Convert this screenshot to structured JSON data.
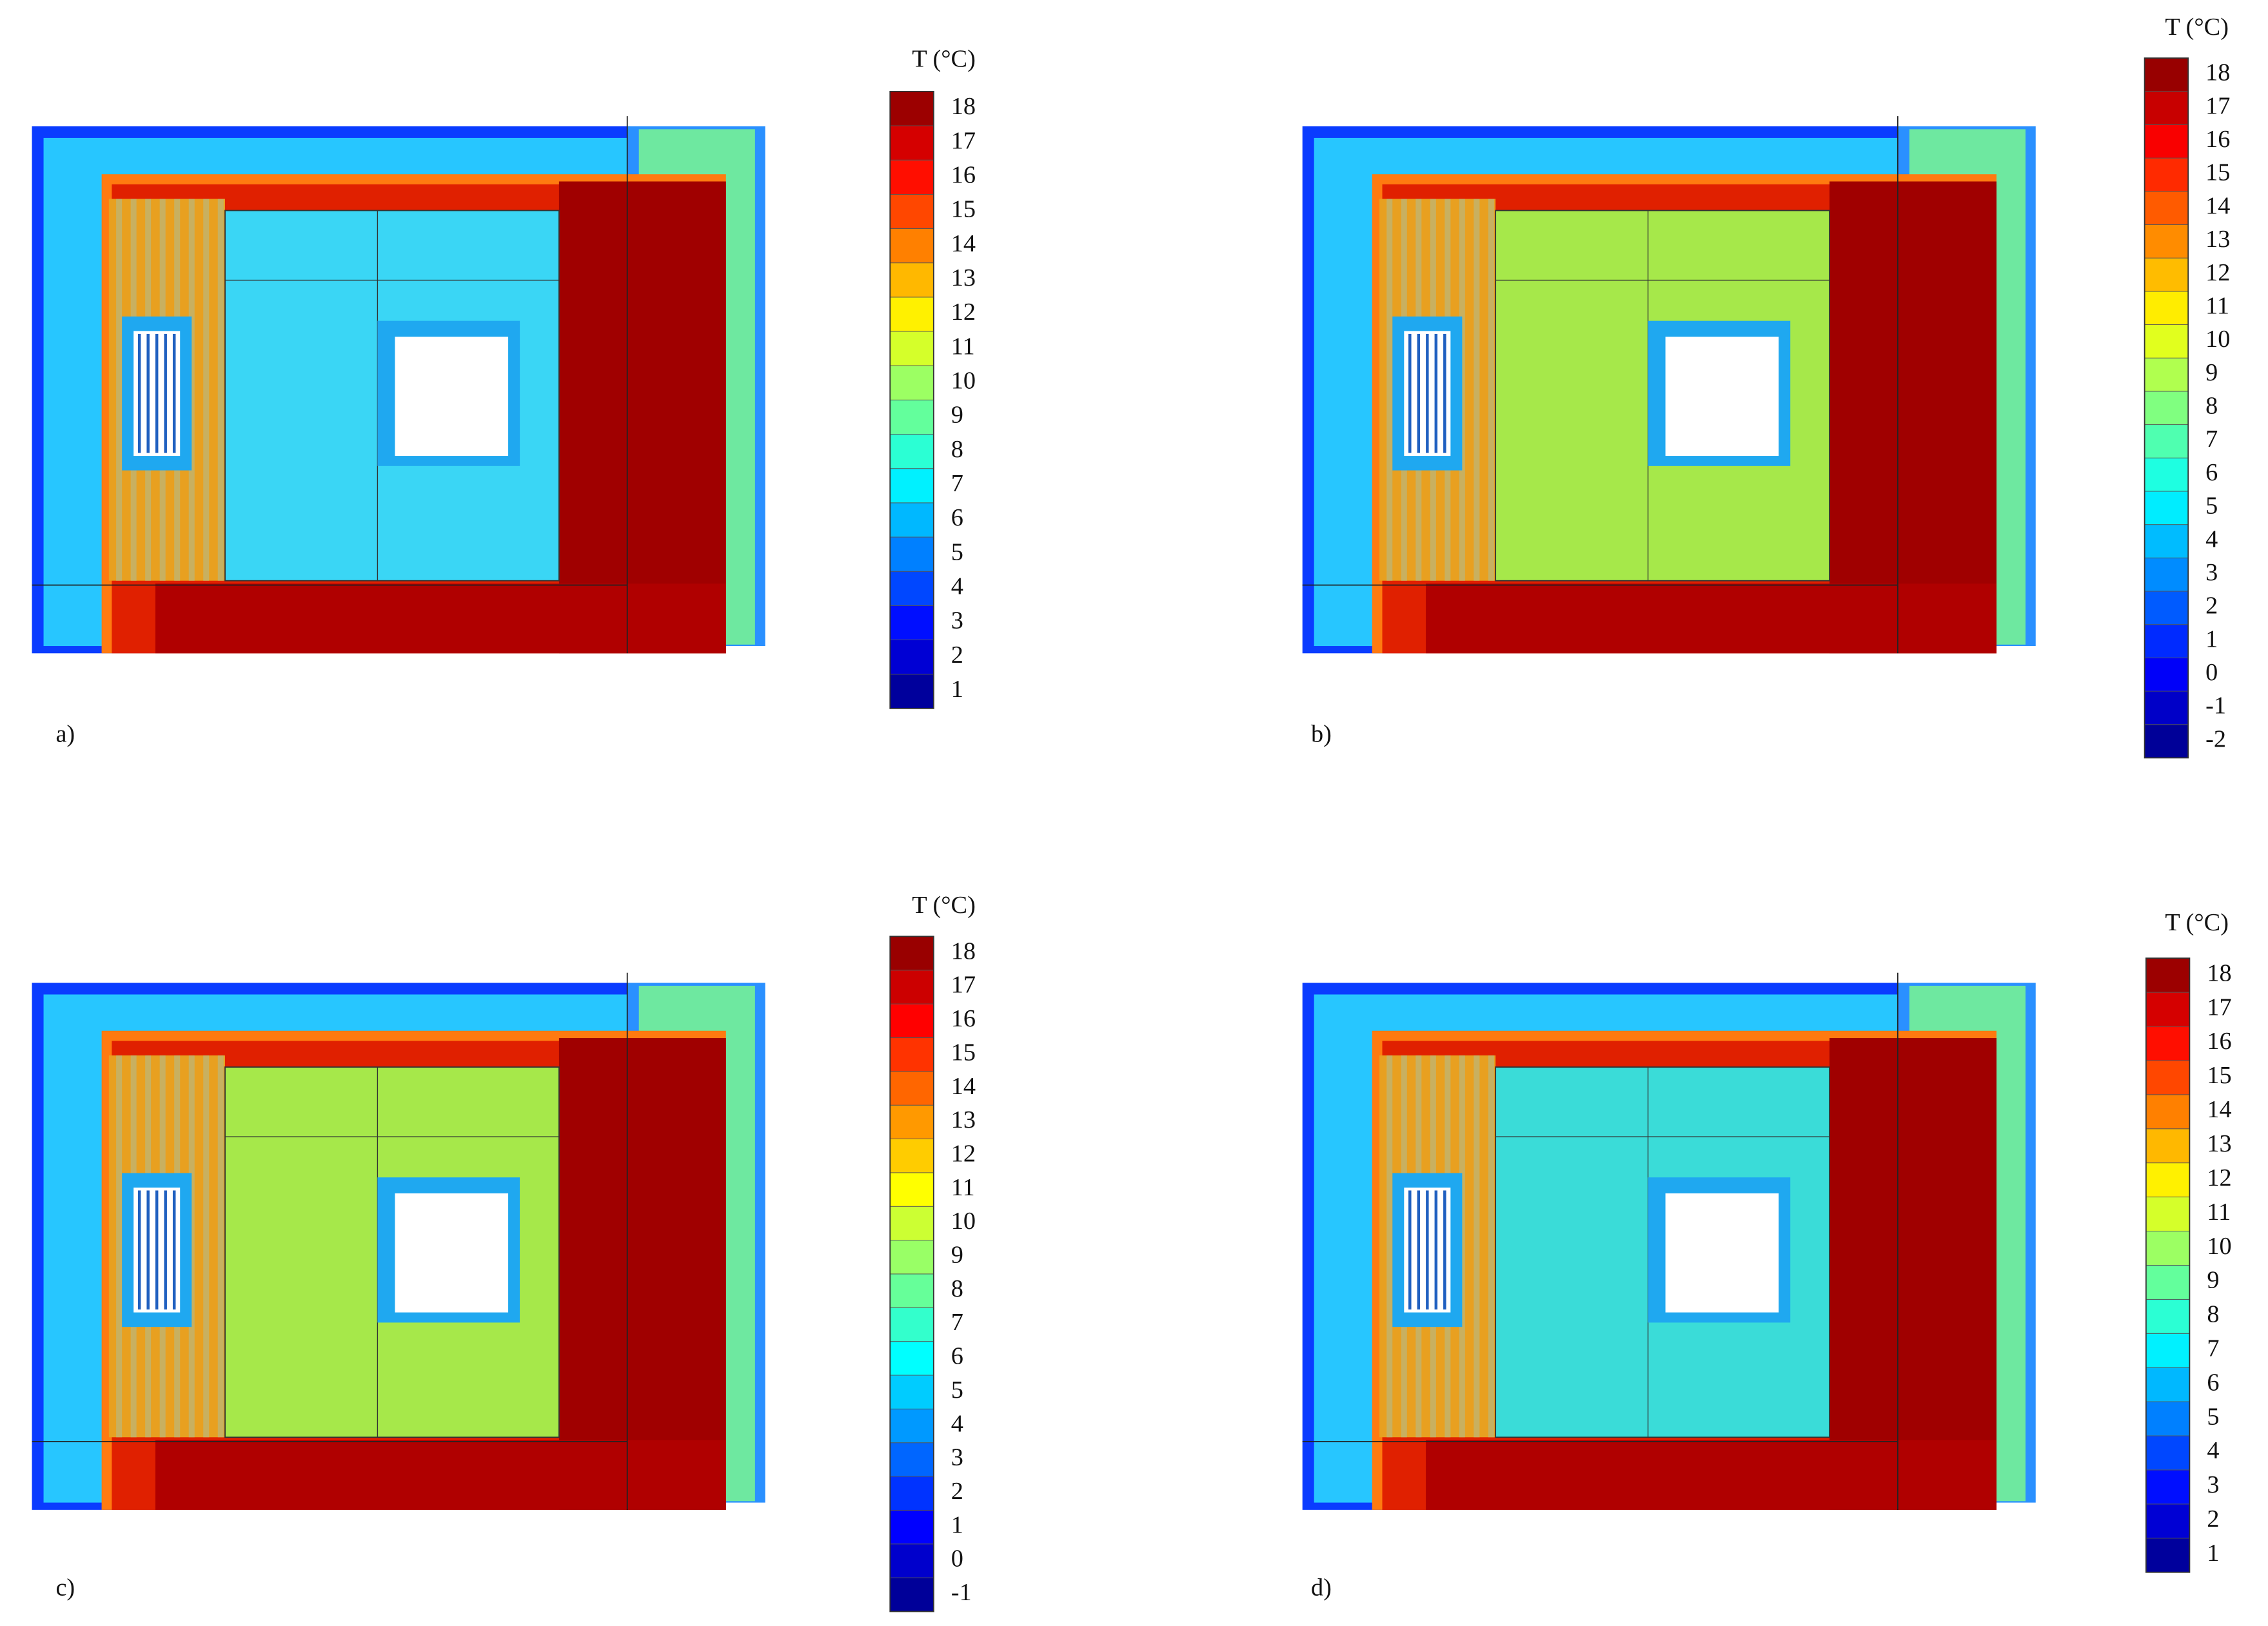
{
  "chart_data": [
    {
      "type": "heatmap",
      "label": "a)",
      "colorbar_title": "T (°C)",
      "wall_color": "#3ad6f5",
      "clim": [
        0.5,
        18.5
      ],
      "cticks": [
        1,
        2,
        3,
        4,
        5,
        6,
        7,
        8,
        9,
        10,
        11,
        12,
        13,
        14,
        15,
        16,
        17,
        18
      ]
    },
    {
      "type": "heatmap",
      "label": "b)",
      "colorbar_title": "T (°C)",
      "wall_color": "#a6e84a",
      "clim": [
        -2.5,
        18.5
      ],
      "cticks": [
        -2,
        -1,
        0,
        1,
        2,
        3,
        4,
        5,
        6,
        7,
        8,
        9,
        10,
        11,
        12,
        13,
        14,
        15,
        16,
        17,
        18
      ]
    },
    {
      "type": "heatmap",
      "label": "c)",
      "colorbar_title": "T (°C)",
      "wall_color": "#a6e84a",
      "clim": [
        -1.5,
        18.5
      ],
      "cticks": [
        -1,
        0,
        1,
        2,
        3,
        4,
        5,
        6,
        7,
        8,
        9,
        10,
        11,
        12,
        13,
        14,
        15,
        16,
        17,
        18
      ]
    },
    {
      "type": "heatmap",
      "label": "d)",
      "colorbar_title": "T (°C)",
      "wall_color": "#3adcd8",
      "clim": [
        0.5,
        18.5
      ],
      "cticks": [
        1,
        2,
        3,
        4,
        5,
        6,
        7,
        8,
        9,
        10,
        11,
        12,
        13,
        14,
        15,
        16,
        17,
        18
      ]
    }
  ]
}
